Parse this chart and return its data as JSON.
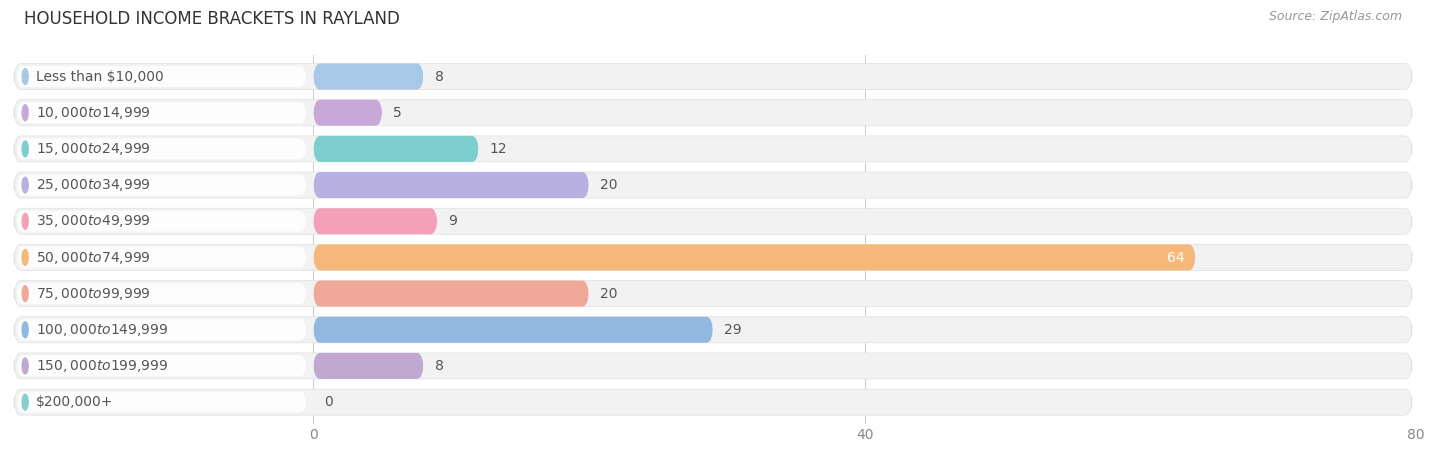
{
  "title": "HOUSEHOLD INCOME BRACKETS IN RAYLAND",
  "source": "Source: ZipAtlas.com",
  "categories": [
    "Less than $10,000",
    "$10,000 to $14,999",
    "$15,000 to $24,999",
    "$25,000 to $34,999",
    "$35,000 to $49,999",
    "$50,000 to $74,999",
    "$75,000 to $99,999",
    "$100,000 to $149,999",
    "$150,000 to $199,999",
    "$200,000+"
  ],
  "values": [
    8,
    5,
    12,
    20,
    9,
    64,
    20,
    29,
    8,
    0
  ],
  "bar_colors": [
    "#a8c8e8",
    "#c8a8d8",
    "#7dcece",
    "#b8b0e0",
    "#f4a0b8",
    "#f5b87a",
    "#f0a898",
    "#90b8e0",
    "#c0a8d0",
    "#88cece"
  ],
  "xlim": [
    0,
    80
  ],
  "xticks": [
    0,
    40,
    80
  ],
  "background_color": "#ffffff",
  "row_bg_color": "#f0f0f0",
  "row_alt_color": "#f8f8f8",
  "title_fontsize": 12,
  "source_fontsize": 9,
  "label_fontsize": 10,
  "value_fontsize": 10,
  "value_64_color": "#ffffff",
  "value_other_color": "#555555",
  "pill_color": "#ffffff",
  "label_text_color": "#555555"
}
